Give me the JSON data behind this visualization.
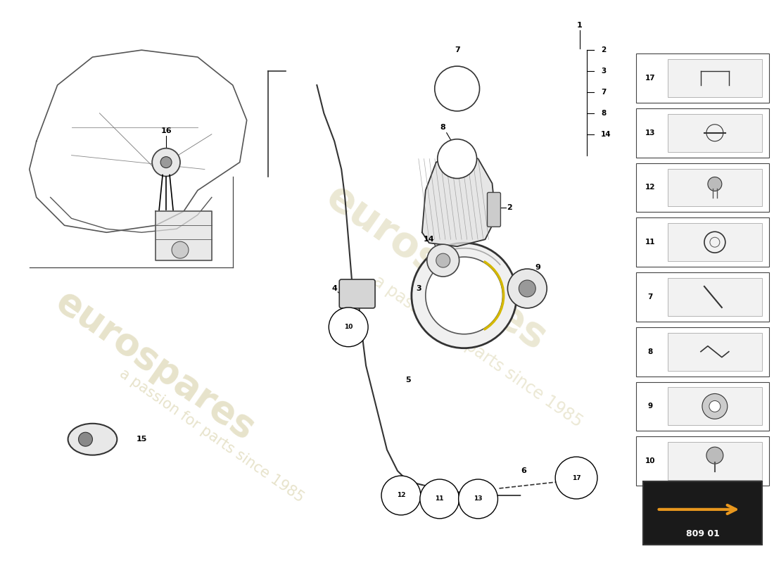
{
  "background_color": "#ffffff",
  "part_number_code": "809 01",
  "watermark1": "eurospares",
  "watermark2": "a passion for parts since 1985",
  "sidebar_nums": [
    17,
    13,
    12,
    11,
    7,
    8,
    9,
    10
  ],
  "listed_nums": [
    "2",
    "3",
    "7",
    "8",
    "14"
  ],
  "listed_prefix": "1",
  "arrow_bg": "#1a1a1a",
  "arrow_color": "#e8971e"
}
